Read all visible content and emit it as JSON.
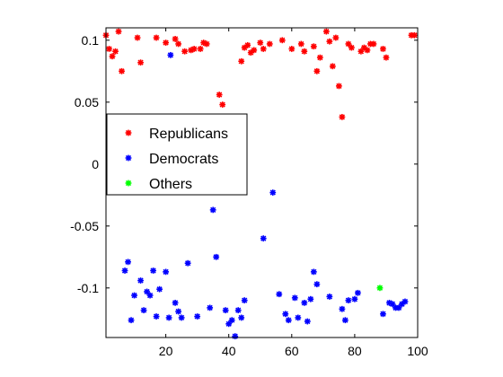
{
  "chart_data": {
    "type": "scatter",
    "title": "",
    "xlabel": "",
    "ylabel": "",
    "xlim": [
      1,
      100
    ],
    "ylim": [
      -0.14,
      0.11
    ],
    "grid": false,
    "box": true,
    "legend_position": "middle-left",
    "x_ticks": [
      20,
      40,
      60,
      80,
      100
    ],
    "x_tick_labels": [
      "20",
      "40",
      "60",
      "80",
      "100"
    ],
    "y_ticks": [
      0.1,
      0.05,
      0,
      -0.05,
      -0.1
    ],
    "y_tick_labels": [
      "0.1",
      "0.05",
      "0",
      "-0.05",
      "-0.1"
    ],
    "marker": "*",
    "series": [
      {
        "name": "Republicans",
        "color": "#ff0000",
        "points": [
          [
            1,
            0.104
          ],
          [
            2,
            0.093
          ],
          [
            3,
            0.087
          ],
          [
            4,
            0.091
          ],
          [
            5,
            0.107
          ],
          [
            6,
            0.075
          ],
          [
            11,
            0.102
          ],
          [
            12,
            0.082
          ],
          [
            17,
            0.102
          ],
          [
            20,
            0.098
          ],
          [
            23,
            0.101
          ],
          [
            24,
            0.097
          ],
          [
            26,
            0.091
          ],
          [
            28,
            0.092
          ],
          [
            29,
            0.093
          ],
          [
            31,
            0.093
          ],
          [
            32,
            0.098
          ],
          [
            33,
            0.097
          ],
          [
            37,
            0.056
          ],
          [
            38,
            0.048
          ],
          [
            44,
            0.083
          ],
          [
            45,
            0.094
          ],
          [
            46,
            0.096
          ],
          [
            47,
            0.09
          ],
          [
            48,
            0.092
          ],
          [
            50,
            0.098
          ],
          [
            51,
            0.093
          ],
          [
            53,
            0.097
          ],
          [
            57,
            0.1
          ],
          [
            60,
            0.093
          ],
          [
            63,
            0.097
          ],
          [
            64,
            0.091
          ],
          [
            67,
            0.095
          ],
          [
            68,
            0.075
          ],
          [
            69,
            0.086
          ],
          [
            71,
            0.107
          ],
          [
            72,
            0.099
          ],
          [
            73,
            0.079
          ],
          [
            74,
            0.102
          ],
          [
            75,
            0.063
          ],
          [
            76,
            0.038
          ],
          [
            78,
            0.097
          ],
          [
            79,
            0.094
          ],
          [
            82,
            0.091
          ],
          [
            83,
            0.094
          ],
          [
            84,
            0.092
          ],
          [
            85,
            0.097
          ],
          [
            86,
            0.097
          ],
          [
            89,
            0.093
          ],
          [
            90,
            0.086
          ],
          [
            98,
            0.104
          ],
          [
            99,
            0.104
          ]
        ]
      },
      {
        "name": "Democrats",
        "color": "#0000ff",
        "points": [
          [
            7,
            -0.086
          ],
          [
            8,
            -0.079
          ],
          [
            9,
            -0.126
          ],
          [
            10,
            -0.106
          ],
          [
            12,
            -0.094
          ],
          [
            13,
            -0.118
          ],
          [
            14,
            -0.103
          ],
          [
            15,
            -0.106
          ],
          [
            16,
            -0.086
          ],
          [
            17,
            -0.123
          ],
          [
            18,
            -0.101
          ],
          [
            20,
            -0.087
          ],
          [
            21,
            -0.124
          ],
          [
            21.5,
            0.088
          ],
          [
            23,
            -0.112
          ],
          [
            24,
            -0.119
          ],
          [
            25,
            -0.124
          ],
          [
            27,
            -0.08
          ],
          [
            30,
            -0.123
          ],
          [
            34,
            -0.116
          ],
          [
            35,
            -0.037
          ],
          [
            36,
            -0.075
          ],
          [
            39,
            -0.118
          ],
          [
            40,
            -0.129
          ],
          [
            41,
            -0.126
          ],
          [
            42,
            -0.139
          ],
          [
            43,
            -0.118
          ],
          [
            44,
            -0.124
          ],
          [
            45,
            -0.11
          ],
          [
            51,
            -0.06
          ],
          [
            54,
            -0.023
          ],
          [
            56,
            -0.105
          ],
          [
            58,
            -0.121
          ],
          [
            59,
            -0.126
          ],
          [
            61,
            -0.108
          ],
          [
            62,
            -0.124
          ],
          [
            64,
            -0.112
          ],
          [
            65,
            -0.127
          ],
          [
            66,
            -0.109
          ],
          [
            67,
            -0.087
          ],
          [
            68,
            -0.097
          ],
          [
            72,
            -0.107
          ],
          [
            76,
            -0.117
          ],
          [
            77,
            -0.126
          ],
          [
            78,
            -0.11
          ],
          [
            80,
            -0.109
          ],
          [
            81,
            -0.104
          ],
          [
            89,
            -0.121
          ],
          [
            91,
            -0.112
          ],
          [
            92,
            -0.113
          ],
          [
            93,
            -0.116
          ],
          [
            94,
            -0.116
          ],
          [
            95,
            -0.113
          ],
          [
            96,
            -0.111
          ]
        ]
      },
      {
        "name": "Others",
        "color": "#00ff00",
        "points": [
          [
            88,
            -0.1
          ]
        ]
      }
    ]
  }
}
